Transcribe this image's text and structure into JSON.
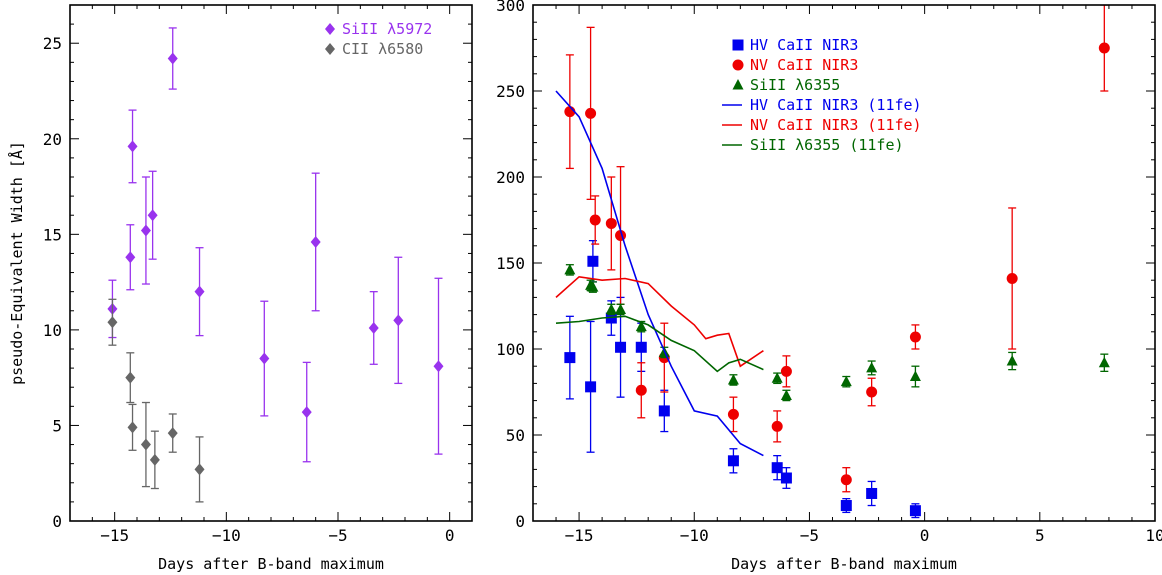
{
  "chart_data": [
    {
      "type": "scatter",
      "xlabel": "Days after B-band maximum",
      "ylabel": "pseudo-Equivalent Width [Å]",
      "xlim": [
        -17,
        1
      ],
      "ylim": [
        0,
        27
      ],
      "xticks": [
        -15,
        -10,
        -5,
        0
      ],
      "yticks": [
        0,
        5,
        10,
        15,
        20,
        25
      ],
      "legend_position": "top-right",
      "series": [
        {
          "name": "SiII λ5972",
          "color": "#9933ee",
          "marker": "diamond",
          "points": [
            {
              "x": -15.1,
              "y": 11.1,
              "err": 1.5
            },
            {
              "x": -14.3,
              "y": 13.8,
              "err": 1.7
            },
            {
              "x": -14.2,
              "y": 19.6,
              "err": 1.9
            },
            {
              "x": -13.6,
              "y": 15.2,
              "err": 2.8
            },
            {
              "x": -13.3,
              "y": 16.0,
              "err": 2.3
            },
            {
              "x": -12.4,
              "y": 24.2,
              "err": 1.6
            },
            {
              "x": -11.2,
              "y": 12.0,
              "err": 2.3
            },
            {
              "x": -8.3,
              "y": 8.5,
              "err": 3.0
            },
            {
              "x": -6.4,
              "y": 5.7,
              "err": 2.6
            },
            {
              "x": -6.0,
              "y": 14.6,
              "err": 3.6
            },
            {
              "x": -3.4,
              "y": 10.1,
              "err": 1.9
            },
            {
              "x": -2.3,
              "y": 10.5,
              "err": 3.3
            },
            {
              "x": -0.5,
              "y": 8.1,
              "err": 4.6
            }
          ]
        },
        {
          "name": "CII λ6580",
          "color": "#666666",
          "marker": "diamond",
          "points": [
            {
              "x": -15.1,
              "y": 10.4,
              "err": 1.2
            },
            {
              "x": -14.3,
              "y": 7.5,
              "err": 1.3
            },
            {
              "x": -14.2,
              "y": 4.9,
              "err": 1.2
            },
            {
              "x": -13.6,
              "y": 4.0,
              "err": 2.2
            },
            {
              "x": -13.2,
              "y": 3.2,
              "err": 1.5
            },
            {
              "x": -12.4,
              "y": 4.6,
              "err": 1.0
            },
            {
              "x": -11.2,
              "y": 2.7,
              "err": 1.7
            }
          ]
        }
      ]
    },
    {
      "type": "scatter",
      "xlabel": "Days after B-band maximum",
      "ylabel": "",
      "xlim": [
        -17,
        10
      ],
      "ylim": [
        0,
        300
      ],
      "xticks": [
        -15,
        -10,
        -5,
        0,
        5,
        10
      ],
      "yticks": [
        0,
        50,
        100,
        150,
        200,
        250,
        300
      ],
      "legend_position": "top-center",
      "series": [
        {
          "name": "HV CaII NIR3",
          "color": "#0000ee",
          "marker": "square",
          "points": [
            {
              "x": -15.4,
              "y": 95,
              "err": 24
            },
            {
              "x": -14.5,
              "y": 78,
              "err": 38
            },
            {
              "x": -14.4,
              "y": 151,
              "err": 12
            },
            {
              "x": -13.6,
              "y": 118,
              "err": 10
            },
            {
              "x": -13.2,
              "y": 101,
              "err": 29
            },
            {
              "x": -12.3,
              "y": 101,
              "err": 14
            },
            {
              "x": -11.3,
              "y": 64,
              "err": 12
            },
            {
              "x": -8.3,
              "y": 35,
              "err": 7
            },
            {
              "x": -6.4,
              "y": 31,
              "err": 7
            },
            {
              "x": -6.0,
              "y": 25,
              "err": 6
            },
            {
              "x": -3.4,
              "y": 9,
              "err": 4
            },
            {
              "x": -2.3,
              "y": 16,
              "err": 7
            },
            {
              "x": -0.4,
              "y": 6,
              "err": 4
            }
          ]
        },
        {
          "name": "NV CaII NIR3",
          "color": "#ee0000",
          "marker": "circle",
          "points": [
            {
              "x": -15.4,
              "y": 238,
              "err": 33
            },
            {
              "x": -14.5,
              "y": 237,
              "err": 50
            },
            {
              "x": -14.3,
              "y": 175,
              "err": 14
            },
            {
              "x": -13.6,
              "y": 173,
              "err": 27
            },
            {
              "x": -13.2,
              "y": 166,
              "err": 40
            },
            {
              "x": -12.3,
              "y": 76,
              "err": 16
            },
            {
              "x": -11.3,
              "y": 95,
              "err": 20
            },
            {
              "x": -8.3,
              "y": 62,
              "err": 10
            },
            {
              "x": -6.4,
              "y": 55,
              "err": 9
            },
            {
              "x": -6.0,
              "y": 87,
              "err": 9
            },
            {
              "x": -3.4,
              "y": 24,
              "err": 7
            },
            {
              "x": -2.3,
              "y": 75,
              "err": 8
            },
            {
              "x": -0.4,
              "y": 107,
              "err": 7
            },
            {
              "x": 3.8,
              "y": 141,
              "err": 41
            },
            {
              "x": 7.8,
              "y": 275,
              "err": 25
            }
          ]
        },
        {
          "name": "SiII λ6355",
          "color": "#006600",
          "marker": "triangle",
          "points": [
            {
              "x": -15.4,
              "y": 146,
              "err": 3
            },
            {
              "x": -14.5,
              "y": 137,
              "err": 3
            },
            {
              "x": -14.4,
              "y": 136,
              "err": 3
            },
            {
              "x": -13.6,
              "y": 123,
              "err": 3
            },
            {
              "x": -13.2,
              "y": 123,
              "err": 3
            },
            {
              "x": -12.3,
              "y": 113,
              "err": 3
            },
            {
              "x": -11.3,
              "y": 98,
              "err": 3
            },
            {
              "x": -8.3,
              "y": 82,
              "err": 3
            },
            {
              "x": -6.4,
              "y": 83,
              "err": 3
            },
            {
              "x": -6.0,
              "y": 73,
              "err": 3
            },
            {
              "x": -3.4,
              "y": 81,
              "err": 3
            },
            {
              "x": -2.3,
              "y": 89,
              "err": 4
            },
            {
              "x": -0.4,
              "y": 84,
              "err": 6
            },
            {
              "x": 3.8,
              "y": 93,
              "err": 5
            },
            {
              "x": 7.8,
              "y": 92,
              "err": 5
            }
          ]
        },
        {
          "name": "HV CaII NIR3 (11fe)",
          "color": "#0000ee",
          "marker": "line",
          "points": [
            {
              "x": -16.0,
              "y": 250
            },
            {
              "x": -15.0,
              "y": 235
            },
            {
              "x": -14.0,
              "y": 205
            },
            {
              "x": -13.0,
              "y": 160
            },
            {
              "x": -12.0,
              "y": 120
            },
            {
              "x": -11.0,
              "y": 90
            },
            {
              "x": -10.0,
              "y": 64
            },
            {
              "x": -9.0,
              "y": 61
            },
            {
              "x": -8.0,
              "y": 45
            },
            {
              "x": -7.0,
              "y": 38
            }
          ]
        },
        {
          "name": "NV CaII NIR3 (11fe)",
          "color": "#ee0000",
          "marker": "line",
          "points": [
            {
              "x": -16.0,
              "y": 130
            },
            {
              "x": -15.0,
              "y": 142
            },
            {
              "x": -14.0,
              "y": 140
            },
            {
              "x": -13.0,
              "y": 141
            },
            {
              "x": -12.0,
              "y": 138
            },
            {
              "x": -11.0,
              "y": 125
            },
            {
              "x": -10.0,
              "y": 114
            },
            {
              "x": -9.5,
              "y": 106
            },
            {
              "x": -9.0,
              "y": 108
            },
            {
              "x": -8.5,
              "y": 109
            },
            {
              "x": -8.0,
              "y": 90
            },
            {
              "x": -7.0,
              "y": 99
            }
          ]
        },
        {
          "name": "SiII λ6355 (11fe)",
          "color": "#006600",
          "marker": "line",
          "points": [
            {
              "x": -16.0,
              "y": 115
            },
            {
              "x": -15.0,
              "y": 116
            },
            {
              "x": -14.0,
              "y": 118
            },
            {
              "x": -13.0,
              "y": 119
            },
            {
              "x": -12.0,
              "y": 114
            },
            {
              "x": -11.0,
              "y": 105
            },
            {
              "x": -10.0,
              "y": 99
            },
            {
              "x": -9.0,
              "y": 87
            },
            {
              "x": -8.5,
              "y": 92
            },
            {
              "x": -8.0,
              "y": 94
            },
            {
              "x": -7.0,
              "y": 88
            }
          ]
        }
      ]
    }
  ]
}
